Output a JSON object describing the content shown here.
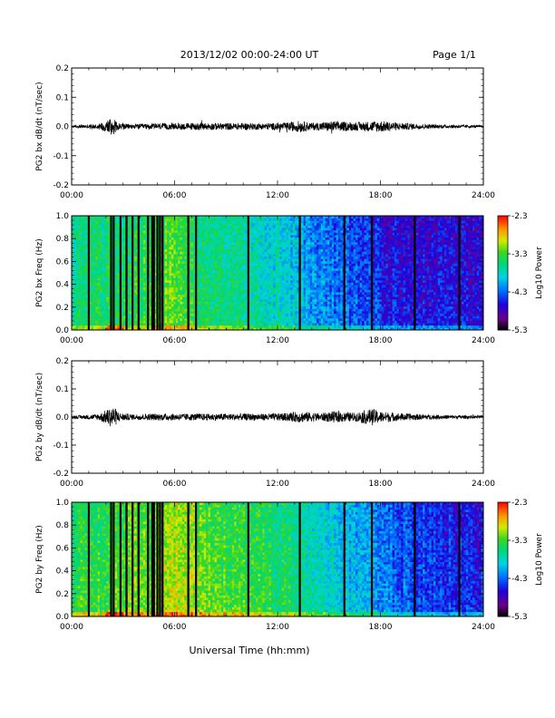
{
  "header": {
    "title": "2013/12/02  00:00-24:00 UT",
    "page": "Page 1/1"
  },
  "footer": {
    "xlabel": "Universal Time (hh:mm)"
  },
  "chart_data": [
    {
      "type": "line",
      "ylabel": "PG2 bx dB/dt (nT/sec)",
      "ylim": [
        -0.2,
        0.2
      ],
      "yticks": [
        "0.2",
        "0.1",
        "0.0",
        "-0.1",
        "-0.2"
      ],
      "xlim": [
        0,
        24
      ],
      "xticks": [
        "00:00",
        "06:00",
        "12:00",
        "18:00",
        "24:00"
      ],
      "noise_envelope": {
        "x": [
          0,
          1.5,
          2.0,
          2.3,
          2.7,
          3.5,
          5,
          7,
          9,
          11,
          12.5,
          13.3,
          14,
          15.3,
          16.5,
          18,
          19,
          21,
          24
        ],
        "amp": [
          0.004,
          0.008,
          0.02,
          0.035,
          0.012,
          0.008,
          0.01,
          0.012,
          0.012,
          0.011,
          0.013,
          0.02,
          0.012,
          0.018,
          0.014,
          0.02,
          0.013,
          0.007,
          0.004
        ]
      }
    },
    {
      "type": "heatmap",
      "ylabel": "PG2 bx Freq (Hz)",
      "ylim": [
        0.0,
        1.0
      ],
      "yticks": [
        "1.0",
        "0.8",
        "0.6",
        "0.4",
        "0.2",
        "0.0"
      ],
      "xlim": [
        0,
        24
      ],
      "xticks": [
        "00:00",
        "06:00",
        "12:00",
        "18:00",
        "24:00"
      ],
      "colorbar": {
        "label": "Log10 Power",
        "ticks": [
          "-2.3",
          "-3.3",
          "-4.3",
          "-5.3"
        ],
        "range": [
          -5.3,
          -2.3
        ]
      },
      "power_profile": {
        "x": [
          0,
          1,
          2,
          3,
          4,
          5,
          6,
          7,
          8,
          10,
          12,
          13,
          14,
          15,
          16,
          17,
          18,
          19,
          20,
          22,
          24
        ],
        "log_power": [
          -3.6,
          -3.5,
          -3.5,
          -3.4,
          -3.35,
          -3.3,
          -3.15,
          -3.3,
          -3.5,
          -3.6,
          -3.75,
          -3.9,
          -4.1,
          -4.2,
          -4.3,
          -4.35,
          -4.5,
          -4.55,
          -4.6,
          -4.6,
          -4.6
        ]
      },
      "gaps_hours": [
        1.0,
        2.3,
        2.45,
        2.85,
        3.2,
        3.55,
        3.9,
        4.45,
        4.7,
        4.8,
        5.0,
        5.15,
        5.3,
        6.8,
        7.25,
        10.3,
        13.3,
        15.9,
        17.5,
        20.0,
        22.6
      ]
    },
    {
      "type": "line",
      "ylabel": "PG2 by dB/dt (nT/sec)",
      "ylim": [
        -0.2,
        0.2
      ],
      "yticks": [
        "0.2",
        "0.1",
        "0.0",
        "-0.1",
        "-0.2"
      ],
      "xlim": [
        0,
        24
      ],
      "xticks": [
        "00:00",
        "06:00",
        "12:00",
        "18:00",
        "24:00"
      ],
      "noise_envelope": {
        "x": [
          0,
          1.5,
          2.0,
          2.4,
          2.8,
          3.5,
          5,
          7,
          9,
          11,
          12.5,
          13.3,
          14.5,
          15.3,
          16.5,
          17.5,
          18,
          18.8,
          21,
          24
        ],
        "amp": [
          0.005,
          0.01,
          0.025,
          0.04,
          0.015,
          0.01,
          0.012,
          0.012,
          0.012,
          0.012,
          0.014,
          0.02,
          0.014,
          0.02,
          0.015,
          0.03,
          0.02,
          0.015,
          0.008,
          0.005
        ]
      }
    },
    {
      "type": "heatmap",
      "ylabel": "PG2 by Freq (Hz)",
      "ylim": [
        0.0,
        1.0
      ],
      "yticks": [
        "1.0",
        "0.8",
        "0.6",
        "0.4",
        "0.2",
        "0.0"
      ],
      "xlim": [
        0,
        24
      ],
      "xticks": [
        "00:00",
        "06:00",
        "12:00",
        "18:00",
        "24:00"
      ],
      "colorbar": {
        "label": "Log10 Power",
        "ticks": [
          "-2.3",
          "-3.3",
          "-4.3",
          "-5.3"
        ],
        "range": [
          -5.3,
          -2.3
        ]
      },
      "power_profile": {
        "x": [
          0,
          1,
          2,
          3,
          4,
          5,
          6,
          7,
          8,
          10,
          12,
          13,
          14,
          15,
          16,
          17,
          18,
          19,
          20,
          22,
          24
        ],
        "log_power": [
          -3.4,
          -3.35,
          -3.3,
          -3.2,
          -3.15,
          -3.1,
          -2.95,
          -3.05,
          -3.2,
          -3.3,
          -3.4,
          -3.5,
          -3.65,
          -3.8,
          -3.9,
          -4.0,
          -4.15,
          -4.25,
          -4.35,
          -4.45,
          -4.5
        ]
      },
      "gaps_hours": [
        1.0,
        2.3,
        2.45,
        2.85,
        3.2,
        3.55,
        3.9,
        4.45,
        4.7,
        4.8,
        5.0,
        5.15,
        5.3,
        6.8,
        7.25,
        10.3,
        13.3,
        15.9,
        17.5,
        20.0,
        22.6
      ]
    }
  ]
}
